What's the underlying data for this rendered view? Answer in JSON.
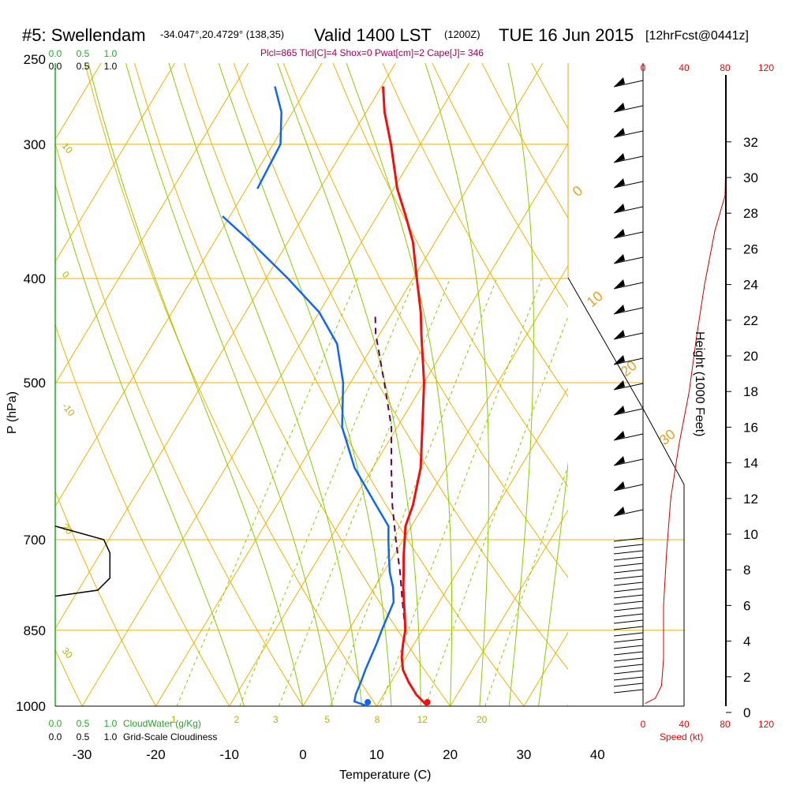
{
  "header": {
    "station": "#5: Swellendam",
    "coords": "-34.047°,20.4729° (138,35)",
    "valid": "Valid 1400 LST",
    "zulu": "(1200Z)",
    "date": "TUE 16 Jun 2015",
    "fcst": "[12hrFcst@0441z]",
    "params": "Plcl=865 Tlcl[C]=4 Shox=0 Pwat[cm]=2 Cape[J]= 346"
  },
  "axes": {
    "temp_label": "Temperature (C)",
    "pressure_label": "P (hPa)",
    "height_label": "Height (1000 Feet)",
    "speed_label": "Speed (kt)",
    "cloudwater_label": "CloudWater (g/Kg)",
    "cloudiness_label": "Grid-Scale Cloudiness"
  },
  "colors": {
    "temperature": "#ee1111",
    "dewpoint": "#1166ee",
    "parcel": "#660055",
    "isotherm": "#f5b100",
    "dry_adiabat": "#f5b100",
    "moist_adiabat": "#88cc00",
    "mixing_ratio": "#88cc00",
    "wind_speed": "#cc0000",
    "cloud_water": "#22aa22",
    "cloudiness": "#000000",
    "param_text": "#a0005a"
  },
  "chart_data": {
    "type": "line",
    "xlabel": "Temperature (C)",
    "ylabel": "P (hPa)",
    "x_ticks": [
      "-30",
      "-20",
      "-10",
      "0",
      "10",
      "20",
      "30",
      "40"
    ],
    "y_ticks": [
      "250",
      "300",
      "400",
      "500",
      "700",
      "850",
      "1000"
    ],
    "pressure_range": [
      250,
      1000
    ],
    "log_scale_pressure": true,
    "grid": true,
    "series": [],
    "temperature_profile": [
      {
        "p": 1000,
        "t": 16.9
      },
      {
        "p": 975,
        "t": 14.4
      },
      {
        "p": 950,
        "t": 12.4
      },
      {
        "p": 925,
        "t": 10.6
      },
      {
        "p": 900,
        "t": 9.4
      },
      {
        "p": 875,
        "t": 8.5
      },
      {
        "p": 850,
        "t": 7.7
      },
      {
        "p": 825,
        "t": 6.5
      },
      {
        "p": 800,
        "t": 5.2
      },
      {
        "p": 775,
        "t": 3.9
      },
      {
        "p": 750,
        "t": 2.7
      },
      {
        "p": 725,
        "t": 1.4
      },
      {
        "p": 700,
        "t": 0.2
      },
      {
        "p": 680,
        "t": -0.8
      },
      {
        "p": 650,
        "t": -1.5
      },
      {
        "p": 600,
        "t": -3.5
      },
      {
        "p": 550,
        "t": -6.6
      },
      {
        "p": 500,
        "t": -10.0
      },
      {
        "p": 450,
        "t": -14.4
      },
      {
        "p": 430,
        "t": -16.2
      },
      {
        "p": 400,
        "t": -19.5
      },
      {
        "p": 370,
        "t": -23.0
      },
      {
        "p": 350,
        "t": -26.1
      },
      {
        "p": 330,
        "t": -29.5
      },
      {
        "p": 300,
        "t": -34.0
      },
      {
        "p": 280,
        "t": -37.5
      },
      {
        "p": 265,
        "t": -39.8
      }
    ],
    "dewpoint_profile": [
      {
        "p": 1000,
        "t": 8.8
      },
      {
        "p": 990,
        "t": 6.6
      },
      {
        "p": 975,
        "t": 6.2
      },
      {
        "p": 950,
        "t": 5.9
      },
      {
        "p": 925,
        "t": 5.5
      },
      {
        "p": 900,
        "t": 5.2
      },
      {
        "p": 875,
        "t": 4.9
      },
      {
        "p": 850,
        "t": 4.5
      },
      {
        "p": 800,
        "t": 3.8
      },
      {
        "p": 775,
        "t": 2.5
      },
      {
        "p": 750,
        "t": 0.8
      },
      {
        "p": 725,
        "t": -0.6
      },
      {
        "p": 700,
        "t": -2.0
      },
      {
        "p": 680,
        "t": -3.1
      },
      {
        "p": 650,
        "t": -6.5
      },
      {
        "p": 600,
        "t": -12.5
      },
      {
        "p": 550,
        "t": -17.5
      },
      {
        "p": 500,
        "t": -21.0
      },
      {
        "p": 460,
        "t": -25.0
      },
      {
        "p": 430,
        "t": -30.0
      },
      {
        "p": 400,
        "t": -37.0
      },
      {
        "p": 370,
        "t": -45.0
      },
      {
        "p": 350,
        "t": -51.0
      }
    ],
    "dewpoint_upper": [
      {
        "p": 330,
        "t": -48.5
      },
      {
        "p": 300,
        "t": -49.0
      },
      {
        "p": 280,
        "t": -51.5
      },
      {
        "p": 265,
        "t": -54.5
      }
    ],
    "parcel_profile": [
      {
        "p": 850,
        "t": 7.7
      },
      {
        "p": 800,
        "t": 5.0
      },
      {
        "p": 750,
        "t": 2.2
      },
      {
        "p": 700,
        "t": -1.0
      },
      {
        "p": 650,
        "t": -4.3
      },
      {
        "p": 600,
        "t": -7.5
      },
      {
        "p": 550,
        "t": -10.8
      },
      {
        "p": 500,
        "t": -15.4
      },
      {
        "p": 450,
        "t": -20.6
      },
      {
        "p": 430,
        "t": -22.4
      }
    ],
    "surface_temperature": 16.9,
    "surface_dewpoint": 8.8,
    "wind_speed_profile": [
      {
        "h": 0.5,
        "s": 2
      },
      {
        "h": 0.8,
        "s": 12
      },
      {
        "h": 1.5,
        "s": 18
      },
      {
        "h": 3,
        "s": 20
      },
      {
        "h": 6,
        "s": 20
      },
      {
        "h": 9,
        "s": 23
      },
      {
        "h": 12,
        "s": 27
      },
      {
        "h": 15,
        "s": 35
      },
      {
        "h": 18,
        "s": 45
      },
      {
        "h": 21,
        "s": 52
      },
      {
        "h": 24,
        "s": 60
      },
      {
        "h": 27,
        "s": 70
      },
      {
        "h": 29,
        "s": 80
      },
      {
        "h": 32,
        "s": 81
      },
      {
        "h": 33,
        "s": 81
      }
    ],
    "cloudiness_profile": [
      {
        "p": 680,
        "v": 0
      },
      {
        "p": 700,
        "v": 0.8
      },
      {
        "p": 720,
        "v": 0.9
      },
      {
        "p": 760,
        "v": 0.9
      },
      {
        "p": 780,
        "v": 0.7
      },
      {
        "p": 790,
        "v": 0
      }
    ],
    "height_ticks": [
      "0",
      "2",
      "4",
      "6",
      "8",
      "10",
      "12",
      "14",
      "16",
      "18",
      "20",
      "22",
      "24",
      "26",
      "28",
      "30",
      "32"
    ],
    "speed_ticks": [
      "0",
      "40",
      "80",
      "120"
    ],
    "cloud_ticks": [
      "0.0",
      "0.5",
      "1.0"
    ],
    "mixing_ratio_labels": [
      "1",
      "2",
      "3",
      "5",
      "8",
      "12",
      "20"
    ],
    "dry_adiabat_labels": [
      "10",
      "0",
      "-10",
      "20",
      "30"
    ],
    "moist_adiabat_labels": [
      "0",
      "10",
      "20",
      "30"
    ]
  }
}
